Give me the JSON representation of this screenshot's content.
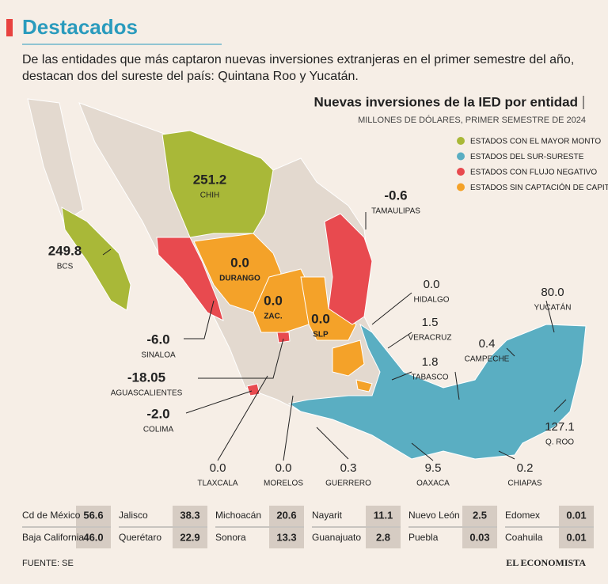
{
  "header": {
    "title": "Destacados",
    "intro": [
      "De las entidades que más captaron nuevas inversiones extranjeras en el primer semestre del año,",
      "destacan dos del sureste del país: Quintana Roo y Yucatán."
    ]
  },
  "map": {
    "title": "Nuevas inversiones de la IED por entidad",
    "subtitle": "MILLONES DE DÓLARES, PRIMER SEMESTRE DE 2024",
    "legend": [
      {
        "label": "ESTADOS CON EL MAYOR MONTO",
        "color": "#a9b838"
      },
      {
        "label": "ESTADOS DEL SUR-SURESTE",
        "color": "#5aaec2"
      },
      {
        "label": "ESTADOS CON FLUJO NEGATIVO",
        "color": "#e84a4f"
      },
      {
        "label": "ESTADOS SIN CAPTACIÓN DE CAPITAL",
        "color": "#f4a229"
      }
    ],
    "labels": [
      {
        "value": "251.2",
        "name": "CHIH"
      },
      {
        "value": "249.8",
        "name": "BCS"
      },
      {
        "value": "-6.0",
        "name": "SINALOA"
      },
      {
        "value": "-18.05",
        "name": "AGUASCALIENTES"
      },
      {
        "value": "-2.0",
        "name": "COLIMA"
      },
      {
        "value": "0.0",
        "name": "DURANGO"
      },
      {
        "value": "0.0",
        "name": "ZAC."
      },
      {
        "value": "0.0",
        "name": "SLP"
      },
      {
        "value": "-0.6",
        "name": "TAMAULIPAS"
      },
      {
        "value": "0.0",
        "name": "HIDALGO"
      },
      {
        "value": "1.5",
        "name": "VERACRUZ"
      },
      {
        "value": "1.8",
        "name": "TABASCO"
      },
      {
        "value": "0.4",
        "name": "CAMPECHE"
      },
      {
        "value": "80.0",
        "name": "YUCATÁN"
      },
      {
        "value": "127.1",
        "name": "Q. ROO"
      },
      {
        "value": "0.2",
        "name": "CHIAPAS"
      },
      {
        "value": "9.5",
        "name": "OAXACA"
      },
      {
        "value": "0.3",
        "name": "GUERRERO"
      },
      {
        "value": "0.0",
        "name": "MORELOS"
      },
      {
        "value": "0.0",
        "name": "TLAXCALA"
      }
    ]
  },
  "table": {
    "rows": [
      [
        {
          "state": "Cd de México",
          "value": "56.6"
        },
        {
          "state": "Jalisco",
          "value": "38.3"
        },
        {
          "state": "Michoacán",
          "value": "20.6"
        },
        {
          "state": "Nayarit",
          "value": "11.1"
        },
        {
          "state": "Nuevo León",
          "value": "2.5"
        },
        {
          "state": "Edomex",
          "value": "0.01"
        }
      ],
      [
        {
          "state": "Baja California",
          "value": "46.0"
        },
        {
          "state": "Querétaro",
          "value": "22.9"
        },
        {
          "state": "Sonora",
          "value": "13.3"
        },
        {
          "state": "Guanajuato",
          "value": "2.8"
        },
        {
          "state": "Puebla",
          "value": "0.03"
        },
        {
          "state": "Coahuila",
          "value": "0.01"
        }
      ]
    ]
  },
  "footer": {
    "source": "FUENTE: SE",
    "brand": "EL ECONOMISTA"
  }
}
